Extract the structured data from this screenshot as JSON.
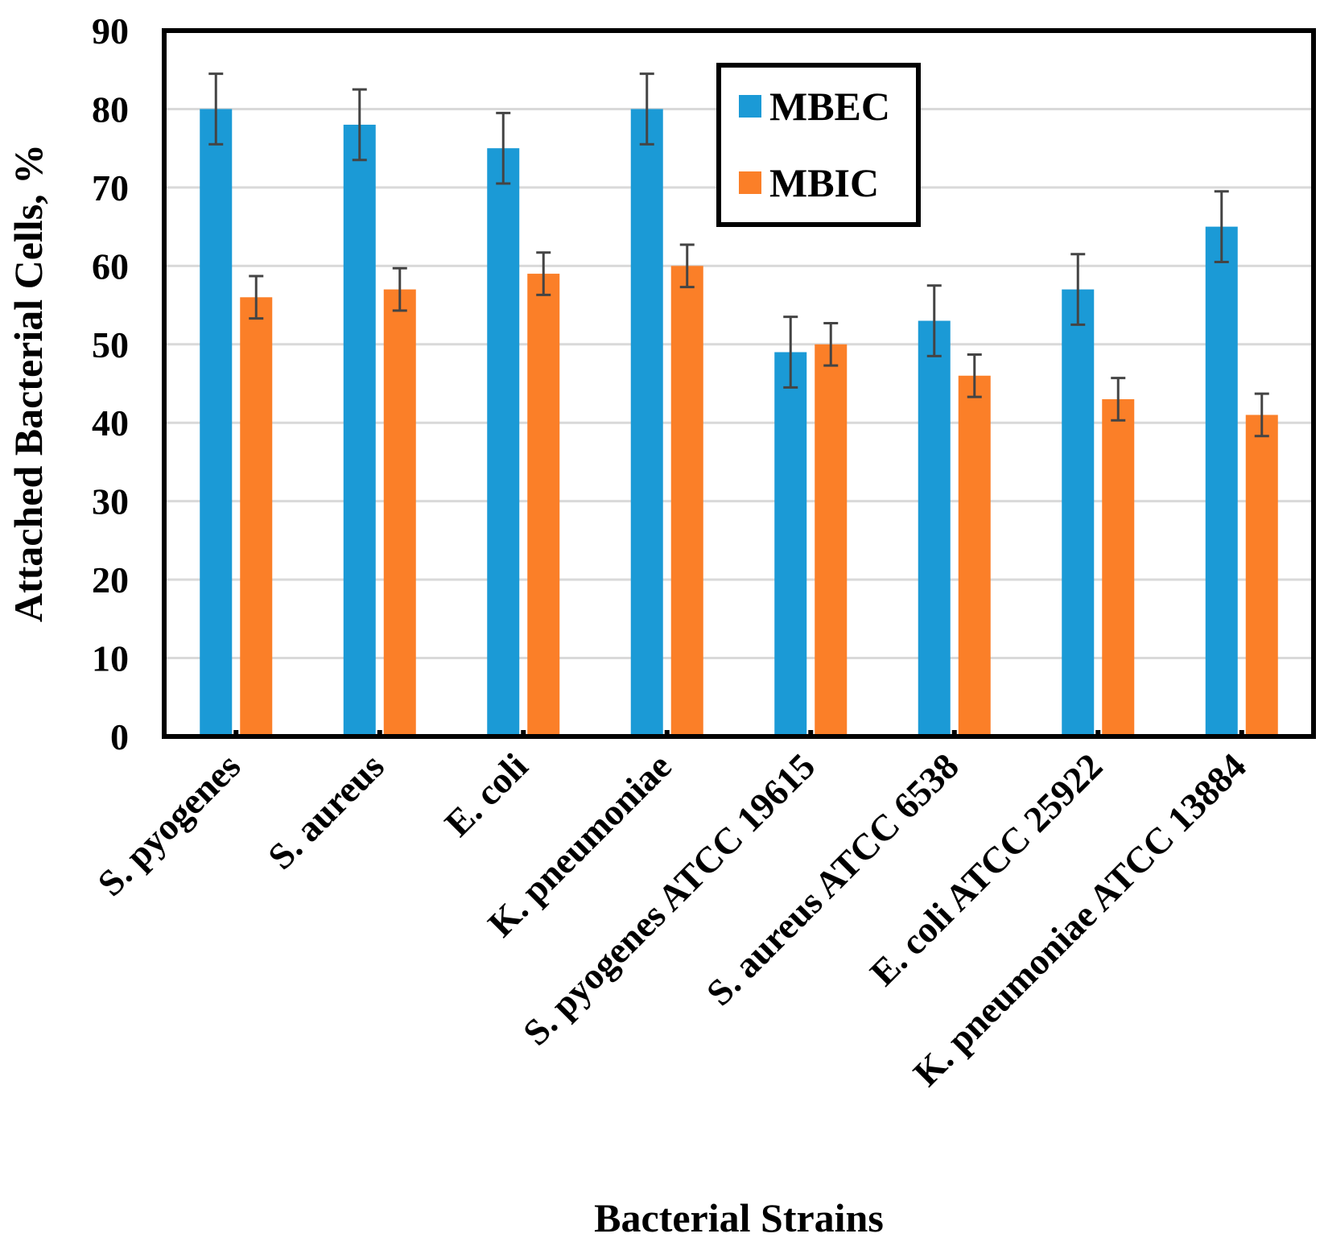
{
  "chart_data": {
    "type": "bar",
    "title": "",
    "xlabel": "Bacterial Strains",
    "ylabel": "Attached Bacterial Cells, %",
    "ylim": [
      0,
      90
    ],
    "yticks": [
      0,
      10,
      20,
      30,
      40,
      50,
      60,
      70,
      80,
      90
    ],
    "grid": true,
    "legend_position": "top-center",
    "categories": [
      "S. pyogenes",
      "S. aureus",
      "E. coli",
      "K. pneumoniae",
      "S. pyogenes ATCC 19615",
      "S. aureus ATCC 6538",
      "E. coli ATCC 25922",
      "K. pneumoniae ATCC 13884"
    ],
    "series": [
      {
        "name": "MBEC",
        "color": "#1b9ad6",
        "values": [
          80,
          78,
          75,
          80,
          49,
          53,
          57,
          65
        ],
        "errors": [
          4.5,
          4.5,
          4.5,
          4.5,
          4.5,
          4.5,
          4.5,
          4.5
        ]
      },
      {
        "name": "MBIC",
        "color": "#fb7f28",
        "values": [
          56,
          57,
          59,
          60,
          50,
          46,
          43,
          41
        ],
        "errors": [
          2.7,
          2.7,
          2.7,
          2.7,
          2.7,
          2.7,
          2.7,
          2.7
        ]
      }
    ]
  }
}
